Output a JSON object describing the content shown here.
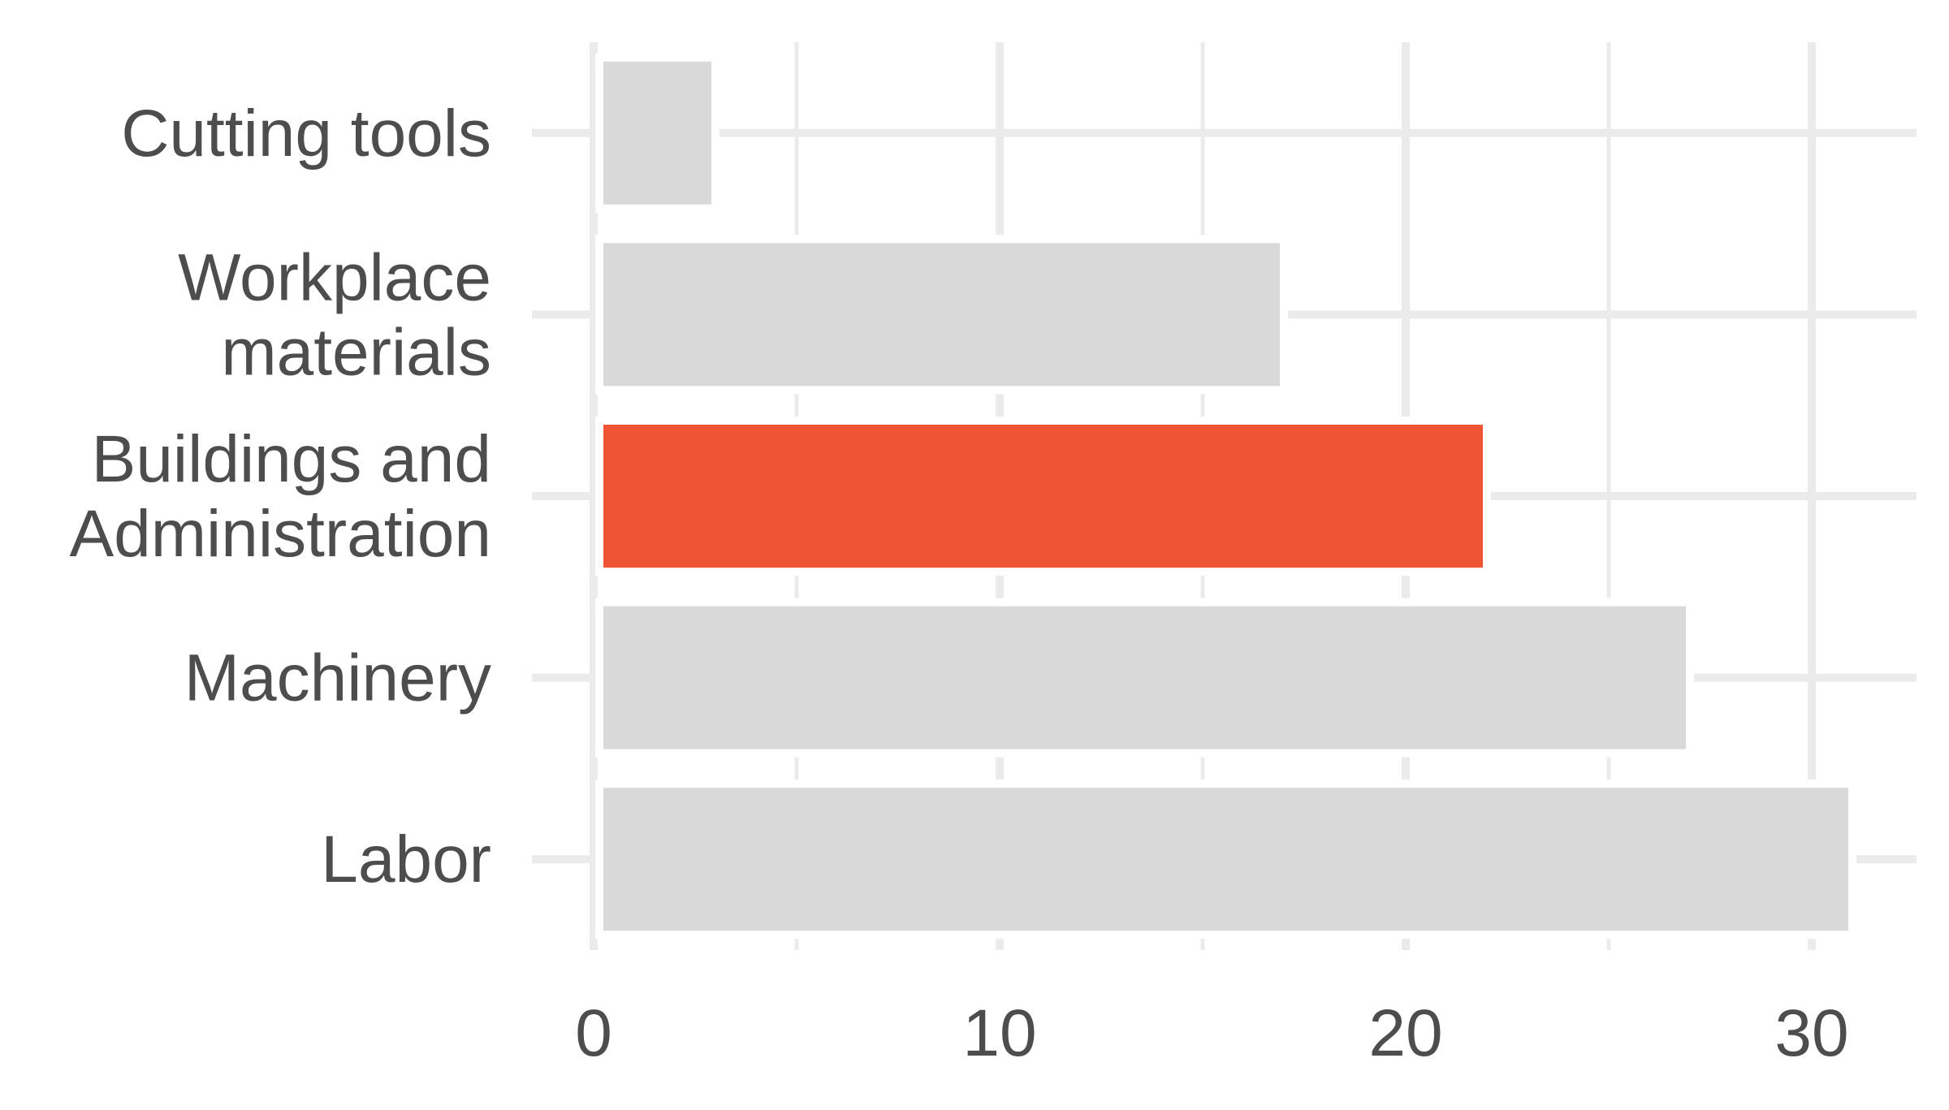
{
  "chart_data": {
    "type": "bar",
    "orientation": "horizontal",
    "categories": [
      [
        "Cutting tools"
      ],
      [
        "Workplace",
        "materials"
      ],
      [
        "Buildings and",
        "Administration"
      ],
      [
        "Machinery"
      ],
      [
        "Labor"
      ]
    ],
    "values": [
      3,
      17,
      22,
      27,
      31
    ],
    "highlight_index": 2,
    "xlim": [
      -0.3,
      33
    ],
    "xticks": [
      0,
      10,
      20,
      30
    ],
    "minor_xticks": [
      5,
      15,
      25
    ],
    "title": "",
    "xlabel": "",
    "ylabel": "",
    "grid": true,
    "legend": "none",
    "colors": {
      "bar": "#d9d9d9",
      "highlight": "#ef5435",
      "grid": "#ebebeb",
      "text": "#4d4d4d",
      "background": "#ffffff"
    }
  }
}
